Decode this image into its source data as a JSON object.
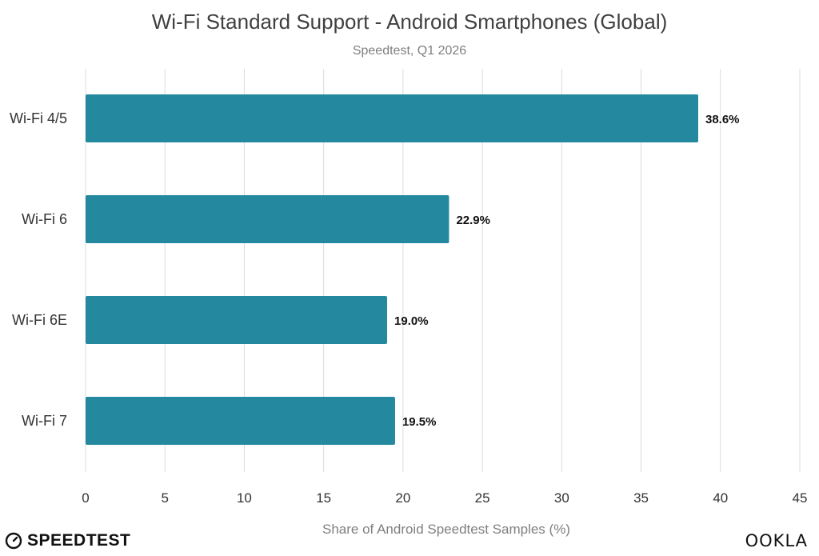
{
  "chart_data": {
    "type": "bar",
    "orientation": "horizontal",
    "title": "Wi-Fi Standard Support - Android Smartphones (Global)",
    "subtitle": "Speedtest, Q1 2026",
    "xlabel": "Share of Android Speedtest Samples (%)",
    "ylabel": "",
    "categories": [
      "Wi-Fi 4/5",
      "Wi-Fi 6",
      "Wi-Fi 6E",
      "Wi-Fi 7"
    ],
    "values": [
      38.6,
      22.9,
      19.0,
      19.5
    ],
    "data_labels": [
      "38.6%",
      "22.9%",
      "19.0%",
      "19.5%"
    ],
    "xlim": [
      0,
      45
    ],
    "xticks": [
      0,
      5,
      10,
      15,
      20,
      25,
      30,
      35,
      40,
      45
    ],
    "grid": true,
    "bar_color": "#24889e"
  },
  "branding": {
    "left_logo_text": "SPEEDTEST",
    "right_logo_text": "OOKLA"
  }
}
